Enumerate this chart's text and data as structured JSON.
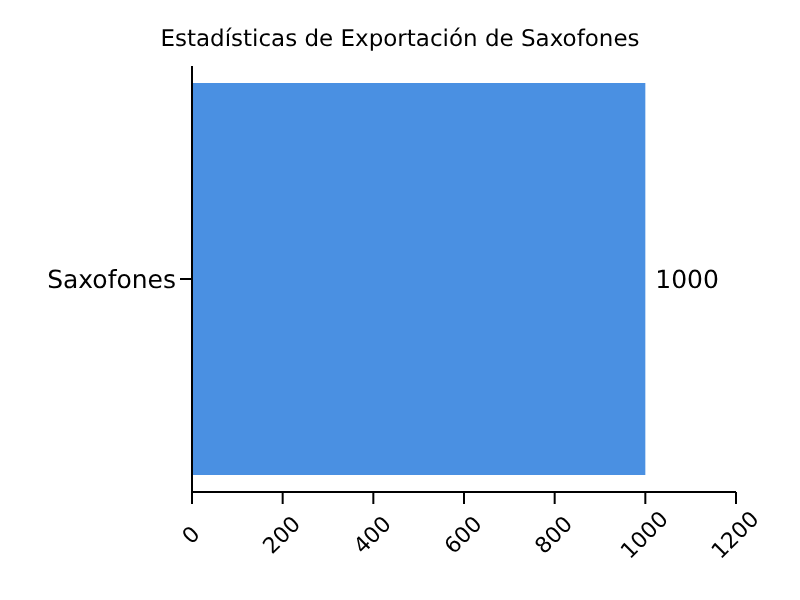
{
  "chart_data": {
    "type": "bar",
    "title": "Estadísticas de Exportación de Saxofones",
    "orientation": "horizontal",
    "categories": [
      "Saxofones"
    ],
    "values": [
      1000
    ],
    "color": "#4a90e2",
    "xlim": [
      0,
      1200
    ],
    "xticks": [
      0,
      200,
      400,
      600,
      800,
      1000,
      1200
    ],
    "data_labels": true,
    "grid": false,
    "legend": false
  }
}
